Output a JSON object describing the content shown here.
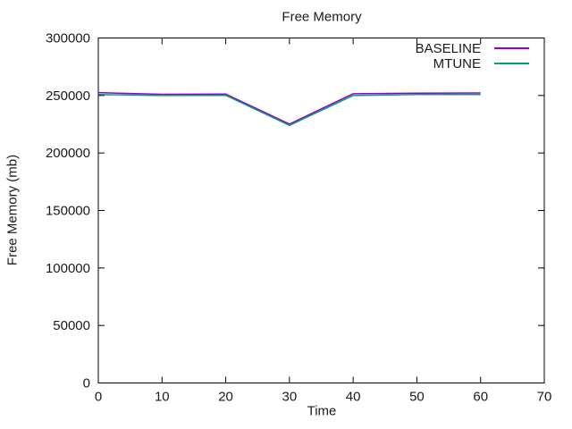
{
  "chart_data": {
    "type": "line",
    "title": "Free Memory",
    "xlabel": "Time",
    "ylabel": "Free Memory (mb)",
    "x": [
      0,
      10,
      20,
      30,
      40,
      50,
      60
    ],
    "series": [
      {
        "name": "BASELINE",
        "color": "#9400d3",
        "values": [
          252500,
          251000,
          251200,
          225200,
          251500,
          252000,
          252200
        ]
      },
      {
        "name": "MTUNE",
        "color": "#009e73",
        "values": [
          250800,
          250000,
          250200,
          224000,
          250000,
          250800,
          250800
        ]
      }
    ],
    "xlim": [
      0,
      70
    ],
    "ylim": [
      0,
      300000
    ],
    "xticks": [
      0,
      10,
      20,
      30,
      40,
      50,
      60,
      70
    ],
    "yticks": [
      0,
      50000,
      100000,
      150000,
      200000,
      250000,
      300000
    ],
    "grid": false,
    "legend_position": "top-right",
    "legend_box": false,
    "tick_style": "inward-mirrored",
    "background_color": "#ffffff",
    "border_color": "#000000",
    "text_color": "#1a1a1a"
  }
}
